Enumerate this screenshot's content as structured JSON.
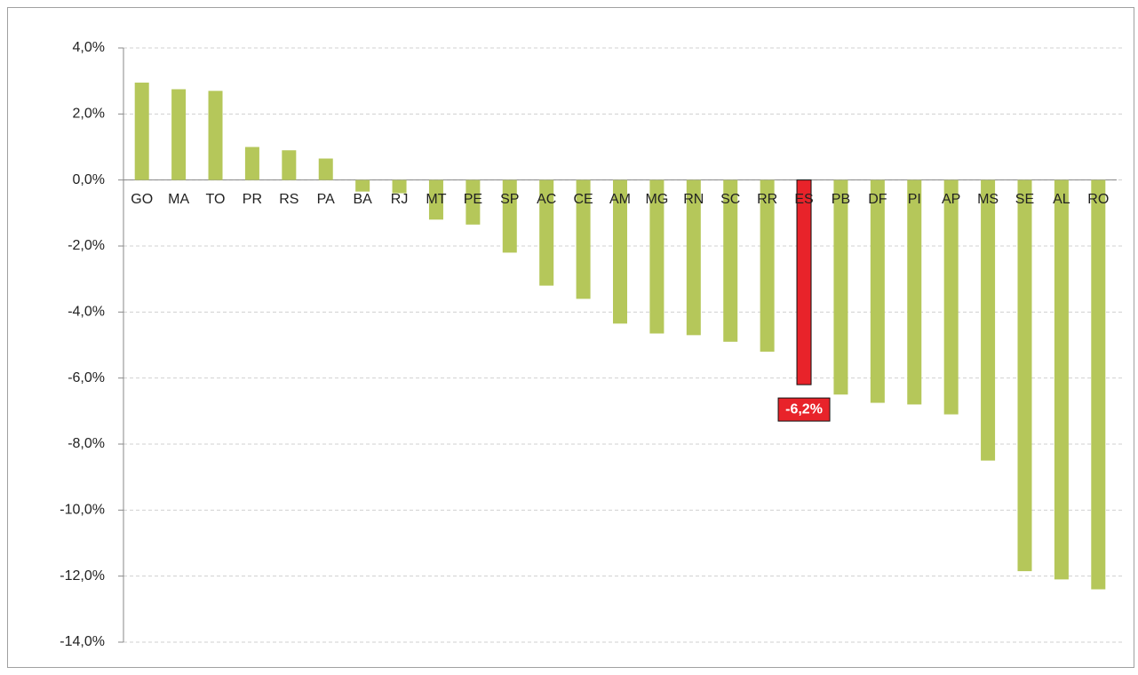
{
  "chart_data": {
    "type": "bar",
    "categories": [
      "GO",
      "MA",
      "TO",
      "PR",
      "RS",
      "PA",
      "BA",
      "RJ",
      "MT",
      "PE",
      "SP",
      "AC",
      "CE",
      "AM",
      "MG",
      "RN",
      "SC",
      "RR",
      "ES",
      "PB",
      "DF",
      "PI",
      "AP",
      "MS",
      "SE",
      "AL",
      "RO"
    ],
    "values": [
      2.95,
      2.75,
      2.7,
      1.0,
      0.9,
      0.65,
      -0.35,
      -0.4,
      -1.2,
      -1.35,
      -2.2,
      -3.2,
      -3.6,
      -4.35,
      -4.65,
      -4.7,
      -4.9,
      -5.2,
      -6.2,
      -6.5,
      -6.75,
      -6.8,
      -7.1,
      -8.5,
      -11.85,
      -12.1,
      -12.4
    ],
    "value_labels": [
      null,
      null,
      null,
      null,
      null,
      null,
      null,
      null,
      null,
      null,
      null,
      null,
      null,
      null,
      null,
      null,
      null,
      null,
      "-6,2%",
      null,
      null,
      null,
      null,
      null,
      null,
      null,
      null
    ],
    "colors": [
      "#b5c75a",
      "#b5c75a",
      "#b5c75a",
      "#b5c75a",
      "#b5c75a",
      "#b5c75a",
      "#b5c75a",
      "#b5c75a",
      "#b5c75a",
      "#b5c75a",
      "#b5c75a",
      "#b5c75a",
      "#b5c75a",
      "#b5c75a",
      "#b5c75a",
      "#b5c75a",
      "#b5c75a",
      "#b5c75a",
      "#e8232a",
      "#b5c75a",
      "#b5c75a",
      "#b5c75a",
      "#b5c75a",
      "#b5c75a",
      "#b5c75a",
      "#b5c75a",
      "#b5c75a"
    ],
    "ylim": [
      -14,
      4
    ],
    "yticks": [
      {
        "value": 4,
        "label": "4,0%"
      },
      {
        "value": 2,
        "label": "2,0%"
      },
      {
        "value": 0,
        "label": "0,0%"
      },
      {
        "value": -2,
        "label": "-2,0%"
      },
      {
        "value": -4,
        "label": "-4,0%"
      },
      {
        "value": -6,
        "label": "-6,0%"
      },
      {
        "value": -8,
        "label": "-8,0%"
      },
      {
        "value": -10,
        "label": "-10,0%"
      },
      {
        "value": -12,
        "label": "-12,0%"
      },
      {
        "value": -14,
        "label": "-14,0%"
      }
    ],
    "grid": true
  }
}
